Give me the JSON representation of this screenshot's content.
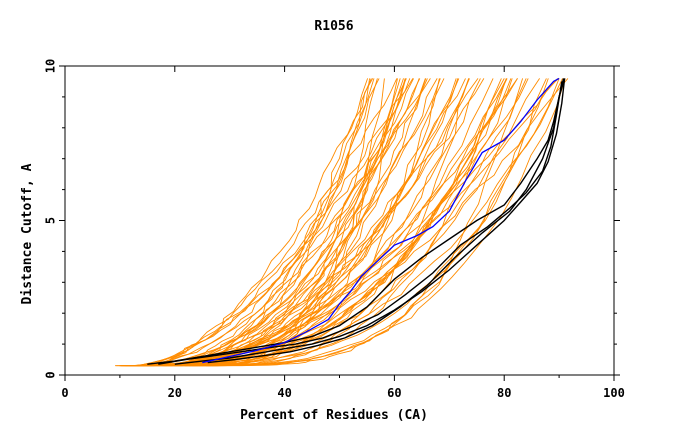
{
  "chart_data": {
    "type": "line",
    "title": "R1056",
    "xlabel": "Percent of Residues (CA)",
    "ylabel": "Distance Cutoff, A",
    "xlim": [
      0,
      100
    ],
    "ylim": [
      0,
      10
    ],
    "x_ticks": [
      0,
      20,
      40,
      60,
      80,
      100
    ],
    "y_ticks": [
      0,
      5,
      10
    ],
    "x_tick_labels": [
      "0",
      "20",
      "40",
      "60",
      "80",
      "100"
    ],
    "y_tick_labels": [
      "0",
      "5",
      "10"
    ],
    "grid": false,
    "legend": "none",
    "colors": {
      "highlight": "#0000ff",
      "reference": "#000000",
      "models": "#ff8c00"
    },
    "highlight": {
      "x": [
        25,
        30,
        35,
        40,
        44,
        48,
        50,
        52,
        54,
        57,
        60,
        64,
        67,
        70,
        73,
        76,
        80,
        83,
        86,
        89,
        90
      ],
      "y": [
        0.4,
        0.6,
        0.8,
        1.05,
        1.4,
        1.8,
        2.3,
        2.7,
        3.2,
        3.7,
        4.2,
        4.5,
        4.8,
        5.3,
        6.3,
        7.2,
        7.6,
        8.2,
        8.9,
        9.5,
        9.6
      ]
    },
    "reference": [
      {
        "x": [
          15,
          20,
          25,
          30,
          35,
          40,
          45,
          50,
          55,
          60,
          65,
          70,
          75,
          80,
          83,
          86,
          88,
          89,
          90,
          91
        ],
        "y": [
          0.35,
          0.45,
          0.6,
          0.75,
          0.9,
          1.05,
          1.25,
          1.6,
          2.2,
          3.1,
          3.8,
          4.4,
          5.0,
          5.5,
          6.2,
          7.0,
          7.6,
          8.2,
          9.0,
          9.6
        ]
      },
      {
        "x": [
          17,
          22,
          27,
          32,
          37,
          42,
          47,
          52,
          57,
          62,
          67,
          72,
          77,
          81,
          84,
          87,
          88.5,
          89.5,
          90.5
        ],
        "y": [
          0.35,
          0.5,
          0.62,
          0.75,
          0.88,
          1.0,
          1.2,
          1.55,
          1.95,
          2.6,
          3.3,
          4.2,
          4.8,
          5.4,
          5.9,
          6.6,
          7.4,
          8.4,
          9.5
        ]
      },
      {
        "x": [
          20,
          25,
          30,
          35,
          40,
          45,
          50,
          55,
          60,
          65,
          70,
          75,
          80,
          83,
          86,
          88,
          89.5,
          90.5,
          91
        ],
        "y": [
          0.35,
          0.45,
          0.55,
          0.7,
          0.85,
          1.0,
          1.25,
          1.6,
          2.1,
          2.7,
          3.4,
          4.2,
          5.0,
          5.6,
          6.2,
          6.9,
          7.8,
          8.8,
          9.6
        ]
      },
      {
        "x": [
          26,
          31,
          36,
          41,
          46,
          51,
          56,
          61,
          66,
          71,
          76,
          81,
          84,
          87,
          89,
          90,
          90.8
        ],
        "y": [
          0.4,
          0.5,
          0.62,
          0.75,
          0.95,
          1.2,
          1.6,
          2.2,
          2.9,
          3.8,
          4.6,
          5.3,
          6.0,
          7.0,
          8.0,
          9.0,
          9.6
        ]
      }
    ],
    "series_summary": {
      "model_count": 60
    }
  }
}
